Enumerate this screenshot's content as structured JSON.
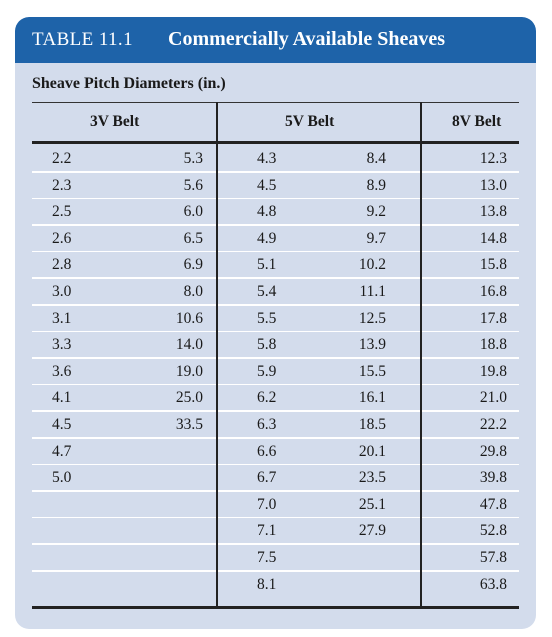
{
  "table": {
    "number": "TABLE 11.1",
    "title": "Commercially Available Sheaves",
    "subtitle": "Sheave Pitch Diameters (in.)",
    "headers": [
      "3V Belt",
      "5V Belt",
      "8V Belt"
    ],
    "rows": [
      [
        "2.2",
        "5.3",
        "4.3",
        "8.4",
        "12.3"
      ],
      [
        "2.3",
        "5.6",
        "4.5",
        "8.9",
        "13.0"
      ],
      [
        "2.5",
        "6.0",
        "4.8",
        "9.2",
        "13.8"
      ],
      [
        "2.6",
        "6.5",
        "4.9",
        "9.7",
        "14.8"
      ],
      [
        "2.8",
        "6.9",
        "5.1",
        "10.2",
        "15.8"
      ],
      [
        "3.0",
        "8.0",
        "5.4",
        "11.1",
        "16.8"
      ],
      [
        "3.1",
        "10.6",
        "5.5",
        "12.5",
        "17.8"
      ],
      [
        "3.3",
        "14.0",
        "5.8",
        "13.9",
        "18.8"
      ],
      [
        "3.6",
        "19.0",
        "5.9",
        "15.5",
        "19.8"
      ],
      [
        "4.1",
        "25.0",
        "6.2",
        "16.1",
        "21.0"
      ],
      [
        "4.5",
        "33.5",
        "6.3",
        "18.5",
        "22.2"
      ],
      [
        "4.7",
        "",
        "6.6",
        "20.1",
        "29.8"
      ],
      [
        "5.0",
        "",
        "6.7",
        "23.5",
        "39.8"
      ],
      [
        "",
        "",
        "7.0",
        "25.1",
        "47.8"
      ],
      [
        "",
        "",
        "7.1",
        "27.9",
        "52.8"
      ],
      [
        "",
        "",
        "7.5",
        "",
        "57.8"
      ],
      [
        "",
        "",
        "8.1",
        "",
        "63.8"
      ]
    ]
  },
  "colors": {
    "header_bg": "#1e63a9",
    "panel_bg": "#d3dcec",
    "row_separator": "#ffffff"
  }
}
